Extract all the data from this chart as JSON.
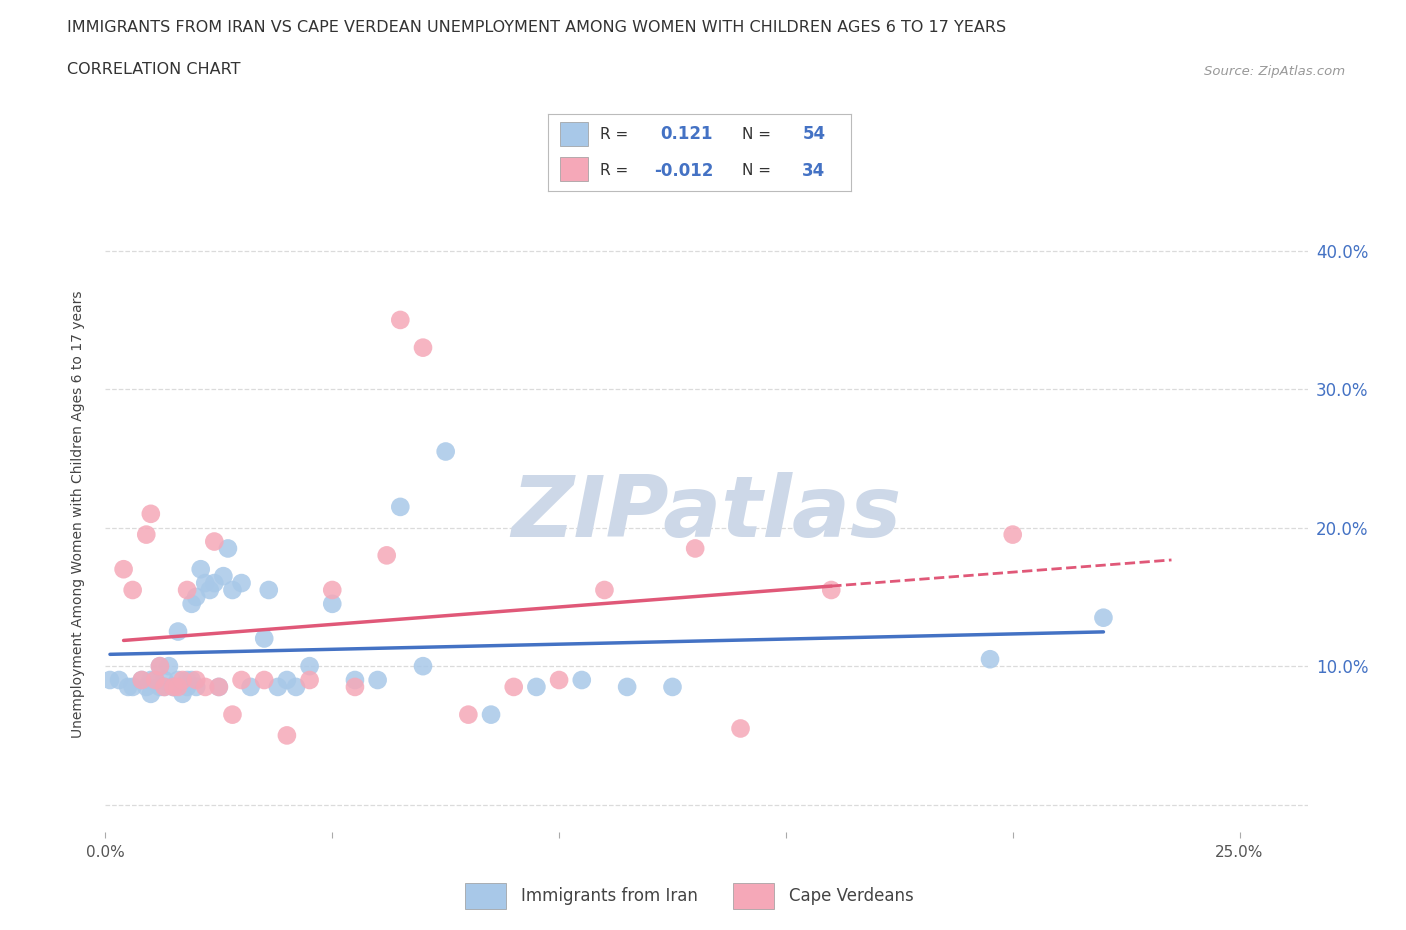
{
  "title_line1": "IMMIGRANTS FROM IRAN VS CAPE VERDEAN UNEMPLOYMENT AMONG WOMEN WITH CHILDREN AGES 6 TO 17 YEARS",
  "title_line2": "CORRELATION CHART",
  "source_text": "Source: ZipAtlas.com",
  "ylabel": "Unemployment Among Women with Children Ages 6 to 17 years",
  "xlim": [
    0.0,
    0.265
  ],
  "ylim": [
    -0.02,
    0.44
  ],
  "xticks": [
    0.0,
    0.05,
    0.1,
    0.15,
    0.2,
    0.25
  ],
  "xtick_labels_show": [
    "0.0%",
    "",
    "",
    "",
    "",
    "25.0%"
  ],
  "right_ytick_labels": [
    "10.0%",
    "20.0%",
    "30.0%",
    "40.0%"
  ],
  "right_yticks": [
    0.1,
    0.2,
    0.3,
    0.4
  ],
  "yticks": [
    0.0,
    0.1,
    0.2,
    0.3,
    0.4
  ],
  "grid_color": "#cccccc",
  "background_color": "#ffffff",
  "watermark_text": "ZIPatlas",
  "watermark_color": "#cdd8e8",
  "iran_fill_color": "#a8c8e8",
  "iran_edge_color": "#a8c8e8",
  "cape_fill_color": "#f5a8b8",
  "cape_edge_color": "#f5a8b8",
  "iran_line_color": "#4472c4",
  "cape_line_color": "#e05878",
  "legend_R_iran": "0.121",
  "legend_N_iran": "54",
  "legend_R_cape": "-0.012",
  "legend_N_cape": "34",
  "iran_scatter_x": [
    0.001,
    0.003,
    0.005,
    0.006,
    0.008,
    0.009,
    0.01,
    0.01,
    0.011,
    0.012,
    0.012,
    0.013,
    0.013,
    0.014,
    0.015,
    0.015,
    0.016,
    0.016,
    0.017,
    0.018,
    0.018,
    0.019,
    0.019,
    0.02,
    0.02,
    0.021,
    0.022,
    0.023,
    0.024,
    0.025,
    0.026,
    0.027,
    0.028,
    0.03,
    0.032,
    0.035,
    0.036,
    0.038,
    0.04,
    0.042,
    0.045,
    0.05,
    0.055,
    0.06,
    0.065,
    0.07,
    0.075,
    0.085,
    0.095,
    0.105,
    0.115,
    0.125,
    0.195,
    0.22
  ],
  "iran_scatter_y": [
    0.09,
    0.09,
    0.085,
    0.085,
    0.09,
    0.085,
    0.09,
    0.08,
    0.09,
    0.085,
    0.1,
    0.085,
    0.09,
    0.1,
    0.085,
    0.085,
    0.09,
    0.125,
    0.08,
    0.085,
    0.09,
    0.09,
    0.145,
    0.085,
    0.15,
    0.17,
    0.16,
    0.155,
    0.16,
    0.085,
    0.165,
    0.185,
    0.155,
    0.16,
    0.085,
    0.12,
    0.155,
    0.085,
    0.09,
    0.085,
    0.1,
    0.145,
    0.09,
    0.09,
    0.215,
    0.1,
    0.255,
    0.065,
    0.085,
    0.09,
    0.085,
    0.085,
    0.105,
    0.135
  ],
  "cape_scatter_x": [
    0.004,
    0.006,
    0.008,
    0.009,
    0.01,
    0.011,
    0.012,
    0.013,
    0.015,
    0.016,
    0.017,
    0.018,
    0.02,
    0.022,
    0.024,
    0.025,
    0.028,
    0.03,
    0.035,
    0.04,
    0.045,
    0.05,
    0.055,
    0.062,
    0.065,
    0.07,
    0.08,
    0.09,
    0.1,
    0.11,
    0.13,
    0.14,
    0.16,
    0.2
  ],
  "cape_scatter_y": [
    0.17,
    0.155,
    0.09,
    0.195,
    0.21,
    0.09,
    0.1,
    0.085,
    0.085,
    0.085,
    0.09,
    0.155,
    0.09,
    0.085,
    0.19,
    0.085,
    0.065,
    0.09,
    0.09,
    0.05,
    0.09,
    0.155,
    0.085,
    0.18,
    0.35,
    0.33,
    0.065,
    0.085,
    0.09,
    0.155,
    0.185,
    0.055,
    0.155,
    0.195
  ],
  "iran_line_x_start": 0.001,
  "iran_line_x_end": 0.22,
  "cape_line_x_solid_start": 0.004,
  "cape_line_x_solid_end": 0.16,
  "cape_line_x_dash_end": 0.235
}
